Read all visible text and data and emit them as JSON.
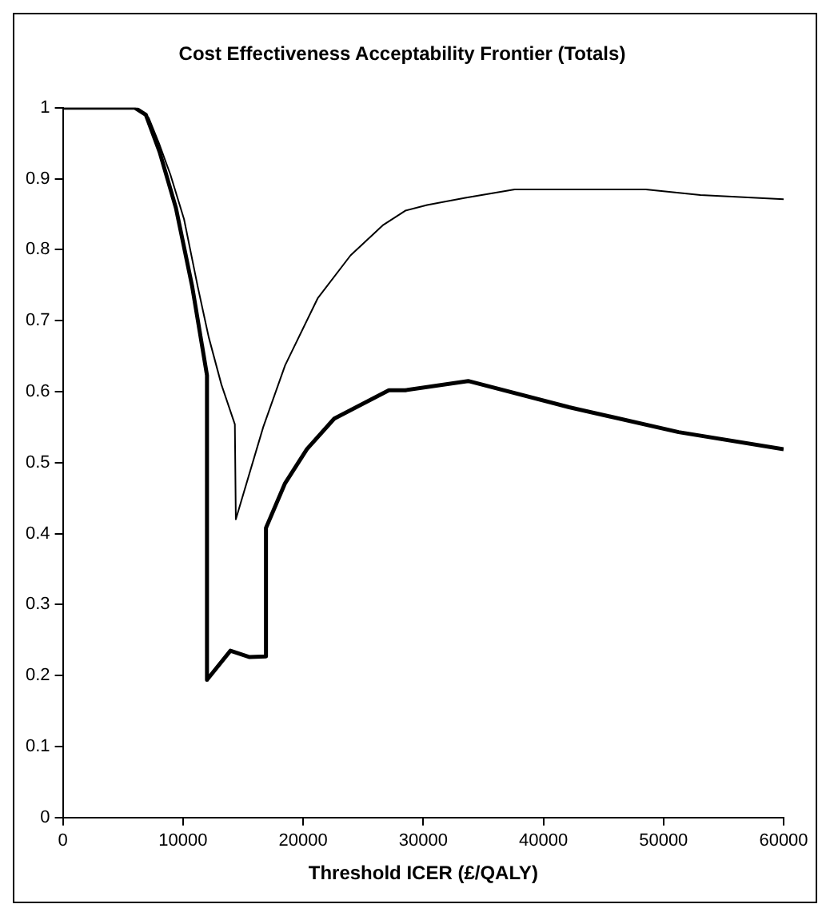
{
  "chart_data": {
    "type": "line",
    "title": "Cost Effectiveness Acceptability Frontier (Totals)",
    "xlabel": "Threshold ICER (£/QALY)",
    "xlim": [
      0,
      60000
    ],
    "xticks": [
      0,
      10000,
      20000,
      30000,
      40000,
      50000,
      60000
    ],
    "ylim": [
      0,
      1
    ],
    "yticks": [
      0,
      0.1,
      0.2,
      0.3,
      0.4,
      0.5,
      0.6,
      0.7,
      0.8,
      0.9,
      1
    ],
    "grid": false,
    "legend": false,
    "marker": "none",
    "line_style": "solid",
    "series": [
      {
        "color": "#000000",
        "x": [
          0,
          6000,
          7140,
          8000,
          8950,
          10090,
          11230,
          12140,
          13200,
          14320,
          14400,
          16680,
          18500,
          21230,
          23950,
          26680,
          28510,
          30320,
          33500,
          37610,
          48530,
          53070,
          60000
        ],
        "values": [
          1,
          1,
          0.986,
          0.95,
          0.906,
          0.843,
          0.748,
          0.677,
          0.61,
          0.554,
          0.42,
          0.55,
          0.637,
          0.732,
          0.792,
          0.835,
          0.855,
          0.863,
          0.873,
          0.885,
          0.885,
          0.877,
          0.871
        ]
      },
      {
        "color": "#000000",
        "x": [
          0,
          6000,
          6910,
          8050,
          9410,
          10770,
          12000,
          12000,
          13950,
          15550,
          16910,
          16910,
          18500,
          20320,
          22590,
          27140,
          28510,
          33740,
          42150,
          51260,
          60000
        ],
        "values": [
          1,
          1,
          0.99,
          0.938,
          0.859,
          0.748,
          0.623,
          0.194,
          0.235,
          0.226,
          0.227,
          0.408,
          0.471,
          0.519,
          0.562,
          0.602,
          0.602,
          0.615,
          0.578,
          0.543,
          0.519
        ]
      }
    ]
  }
}
